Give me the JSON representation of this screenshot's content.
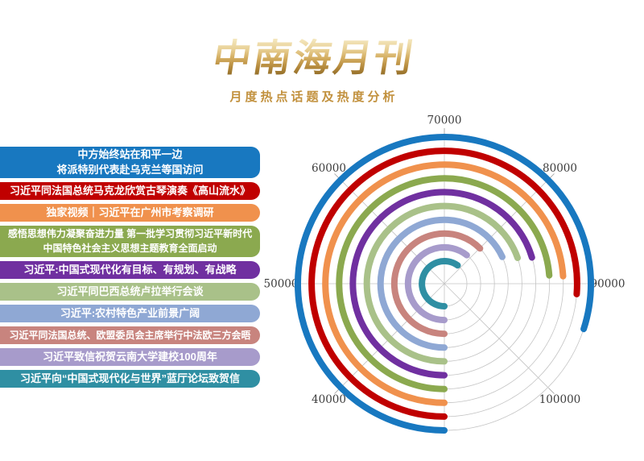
{
  "page": {
    "title": "中南海月刊",
    "subtitle": "月度热点话题及热度分析"
  },
  "chart_data": {
    "type": "bar",
    "layout": "polar-radial-arcs",
    "title": "月度热点话题及热度分析",
    "categories": [
      "中方始终站在和平一边\n将派特别代表赴乌克兰等国访问",
      "习近平同法国总统马克龙欣赏古琴演奏《高山流水》",
      "独家视频｜习近平在广州市考察调研",
      "感悟思想伟力凝聚奋进力量 第一批学习贯彻习近平新时代\n中国特色社会主义思想主题教育全面启动",
      "习近平:中国式现代化有目标、有规划、有战略",
      "习近平同巴西总统卢拉举行会谈",
      "习近平:农村特色产业前景广阔",
      "习近平同法国总统、欧盟委员会主席举行中法欧三方会晤",
      "习近平致信祝贺云南大学建校100周年",
      "习近平向“中国式现代化与世界”蓝厅论坛致贺信"
    ],
    "values": [
      94000,
      91000,
      89200,
      89000,
      86300,
      85700,
      84500,
      80100,
      78500,
      78000
    ],
    "colors": [
      "#1878c0",
      "#c00000",
      "#f0914d",
      "#8ba94f",
      "#7030a0",
      "#a9c189",
      "#8fa8d4",
      "#c8847e",
      "#a79bcb",
      "#2f8fa3"
    ],
    "angular_axis": {
      "start_value_at_bottom": 30000,
      "value_per_45deg": 10000,
      "full_circle_value": 110000,
      "direction": "clockwise-from-bottom",
      "tick_labels": [
        40000,
        50000,
        60000,
        70000,
        80000,
        90000,
        100000
      ]
    },
    "ring_order": "first-category-outermost",
    "grid": true,
    "grid_color": "#c4c4c4",
    "tick_text_color": "#3d3d3d"
  }
}
